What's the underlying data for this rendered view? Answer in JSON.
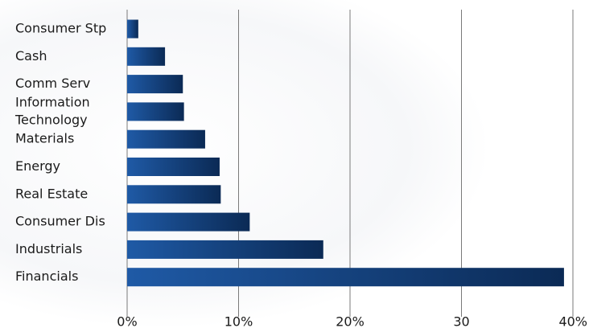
{
  "chart_data": {
    "type": "bar",
    "orientation": "horizontal",
    "categories": [
      "Consumer Stp",
      "Cash",
      "Comm Serv",
      "Information Technology",
      "Materials",
      "Energy",
      "Real Estate",
      "Consumer Dis",
      "Industrials",
      "Financials"
    ],
    "category_label_lines": [
      [
        "Consumer Stp"
      ],
      [
        "Cash"
      ],
      [
        "Comm Serv"
      ],
      [
        "Information",
        "Technology"
      ],
      [
        "Materials"
      ],
      [
        "Energy"
      ],
      [
        "Real Estate"
      ],
      [
        "Consumer Dis"
      ],
      [
        "Industrials"
      ],
      [
        "Financials"
      ]
    ],
    "values": [
      1.0,
      3.4,
      5.0,
      5.1,
      7.0,
      8.3,
      8.4,
      11.0,
      17.6,
      39.2
    ],
    "xlim": [
      0,
      40
    ],
    "ticks": [
      0,
      10,
      20,
      30,
      40
    ],
    "tick_labels": [
      "0%",
      "10%",
      "20%",
      "30",
      "40%"
    ],
    "title": "",
    "xlabel": "",
    "ylabel": "",
    "grid": "vertical",
    "legend": "none",
    "colors": {
      "bar_start": "#1f5aa6",
      "bar_end": "#0b2a55",
      "grid": "#7a7a7a",
      "text": "#1a1a1a",
      "background": "#ffffff"
    }
  }
}
